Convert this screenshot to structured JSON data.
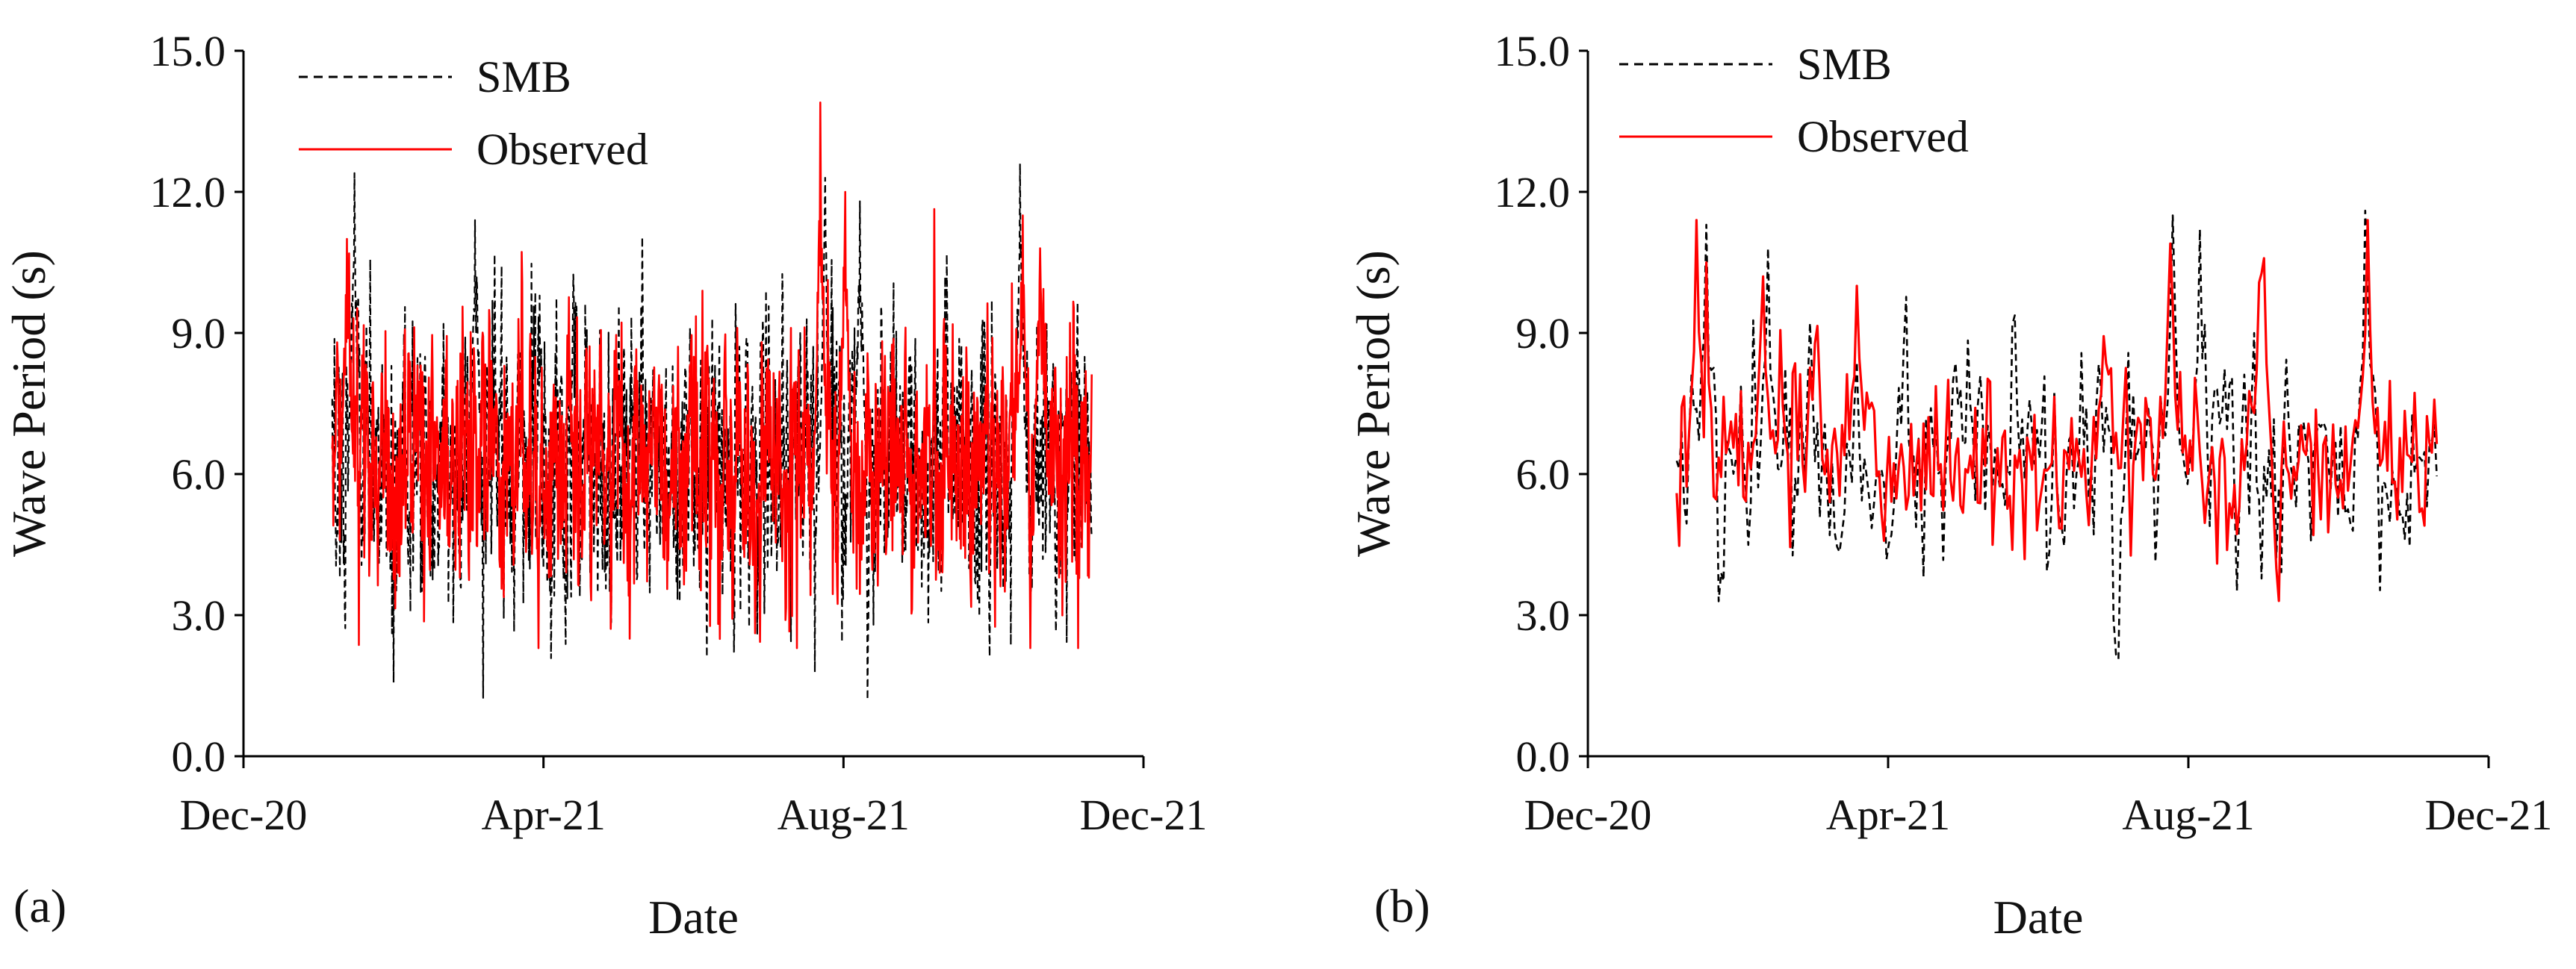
{
  "colors": {
    "smb": "#000000",
    "observed": "#ff0000"
  },
  "chart_data": [
    {
      "type": "line",
      "panel_label": "(a)",
      "title": "",
      "xlabel": "Date",
      "ylabel": "Wave Period (s)",
      "ylim": [
        0,
        15
      ],
      "yticks": [
        "0.0",
        "3.0",
        "6.0",
        "9.0",
        "12.0",
        "15.0"
      ],
      "xticks": [
        "Dec-20",
        "Apr-21",
        "Aug-21",
        "Dec-21"
      ],
      "legend": {
        "position": "top-left",
        "entries": [
          "SMB",
          "Observed"
        ]
      },
      "resolution": "hourly",
      "date_range": [
        "2021-01-06",
        "2021-11-10"
      ],
      "series": [
        {
          "name": "SMB",
          "style": "dashed",
          "color": "#000000",
          "mean": 6.1,
          "min": 1.2,
          "max": 12.6,
          "peaks": [
            {
              "date": "2021-01-15",
              "value": 12.4
            },
            {
              "date": "2021-03-05",
              "value": 11.4
            },
            {
              "date": "2021-07-25",
              "value": 12.3
            },
            {
              "date": "2021-08-08",
              "value": 11.8
            },
            {
              "date": "2021-10-12",
              "value": 12.6
            }
          ]
        },
        {
          "name": "Observed",
          "style": "solid",
          "color": "#ff0000",
          "mean": 6.2,
          "min": 2.3,
          "max": 13.9,
          "peaks": [
            {
              "date": "2021-01-12",
              "value": 11.0
            },
            {
              "date": "2021-07-23",
              "value": 13.9
            },
            {
              "date": "2021-08-02",
              "value": 12.0
            },
            {
              "date": "2021-10-13",
              "value": 11.5
            },
            {
              "date": "2021-10-20",
              "value": 10.8
            }
          ]
        }
      ]
    },
    {
      "type": "line",
      "panel_label": "(b)",
      "title": "",
      "xlabel": "Date",
      "ylabel": "Wave Period (s)",
      "ylim": [
        0,
        15
      ],
      "yticks": [
        "0.0",
        "3.0",
        "6.0",
        "9.0",
        "12.0",
        "15.0"
      ],
      "xticks": [
        "Dec-20",
        "Apr-21",
        "Aug-21",
        "Dec-21"
      ],
      "legend": {
        "position": "top-left",
        "entries": [
          "SMB",
          "Observed"
        ]
      },
      "resolution": "daily",
      "date_range": [
        "2021-01-06",
        "2021-11-10"
      ],
      "series": [
        {
          "name": "SMB",
          "style": "dashed",
          "color": "#000000",
          "mean": 6.1,
          "min": 1.9,
          "max": 11.6,
          "peaks": [
            {
              "date": "2021-01-18",
              "value": 11.3
            },
            {
              "date": "2021-02-12",
              "value": 10.8
            },
            {
              "date": "2021-07-26",
              "value": 11.5
            },
            {
              "date": "2021-08-06",
              "value": 11.2
            },
            {
              "date": "2021-10-12",
              "value": 11.6
            }
          ]
        },
        {
          "name": "Observed",
          "style": "solid",
          "color": "#ff0000",
          "mean": 6.3,
          "min": 2.9,
          "max": 11.4,
          "peaks": [
            {
              "date": "2021-01-14",
              "value": 11.4
            },
            {
              "date": "2021-02-10",
              "value": 10.2
            },
            {
              "date": "2021-03-20",
              "value": 10.0
            },
            {
              "date": "2021-07-25",
              "value": 10.9
            },
            {
              "date": "2021-10-13",
              "value": 11.4
            }
          ]
        }
      ]
    }
  ]
}
